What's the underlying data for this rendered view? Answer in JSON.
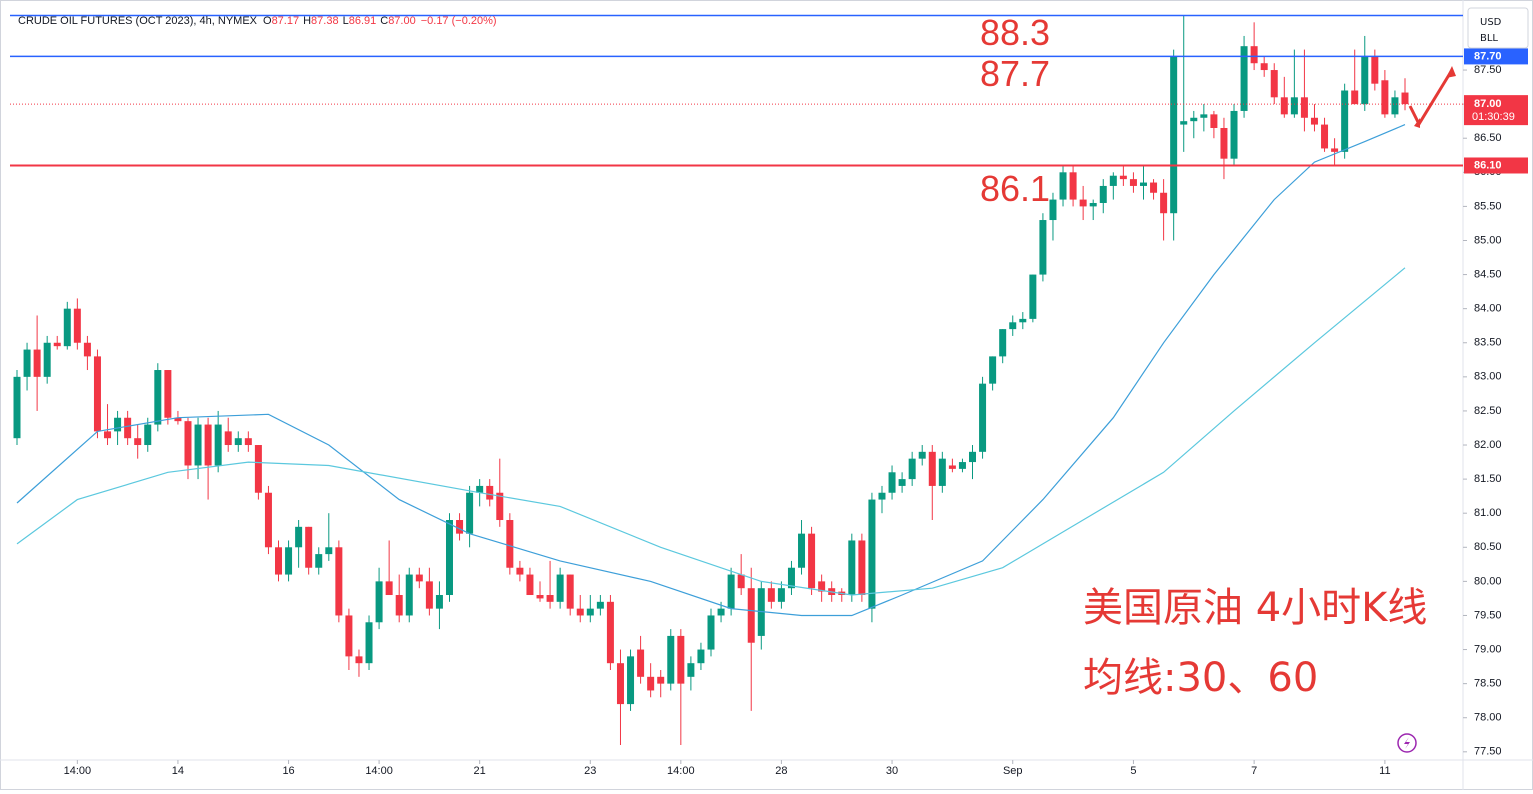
{
  "header": {
    "title": "CRUDE OIL FUTURES (OCT 2023), 4h, NYMEX",
    "fields": [
      {
        "key": "O",
        "value": "87.17"
      },
      {
        "key": "H",
        "value": "87.38"
      },
      {
        "key": "L",
        "value": "86.91"
      },
      {
        "key": "C",
        "value": "87.00"
      }
    ],
    "change": "−0.17 (−0.20%)",
    "currency": "USD",
    "unit": "BLL"
  },
  "chart_data": {
    "type": "candlestick",
    "up_color": "#089981",
    "down_color": "#f23645",
    "ohlc": [
      [
        82.1,
        83.1,
        82.0,
        83.0
      ],
      [
        83.0,
        83.5,
        82.8,
        83.4
      ],
      [
        83.4,
        83.9,
        82.5,
        83.0
      ],
      [
        83.0,
        83.6,
        82.9,
        83.5
      ],
      [
        83.5,
        83.6,
        83.4,
        83.45
      ],
      [
        83.45,
        84.1,
        83.4,
        84.0
      ],
      [
        84.0,
        84.15,
        83.4,
        83.5
      ],
      [
        83.5,
        83.6,
        83.1,
        83.3
      ],
      [
        83.3,
        83.4,
        82.1,
        82.2
      ],
      [
        82.2,
        82.6,
        82.0,
        82.1
      ],
      [
        82.2,
        82.5,
        82.0,
        82.4
      ],
      [
        82.4,
        82.5,
        82.0,
        82.1
      ],
      [
        82.1,
        82.3,
        81.8,
        82.0
      ],
      [
        82.0,
        82.4,
        81.9,
        82.3
      ],
      [
        82.3,
        83.2,
        82.2,
        83.1
      ],
      [
        83.1,
        83.1,
        82.3,
        82.4
      ],
      [
        82.4,
        82.5,
        82.3,
        82.35
      ],
      [
        82.35,
        82.4,
        81.5,
        81.7
      ],
      [
        81.7,
        82.4,
        81.5,
        82.3
      ],
      [
        82.3,
        82.4,
        81.2,
        81.7
      ],
      [
        81.7,
        82.5,
        81.6,
        82.3
      ],
      [
        82.2,
        82.4,
        81.9,
        82.0
      ],
      [
        82.0,
        82.2,
        81.9,
        82.1
      ],
      [
        82.1,
        82.2,
        81.9,
        82.0
      ],
      [
        82.0,
        82.0,
        81.2,
        81.3
      ],
      [
        81.3,
        81.4,
        80.4,
        80.5
      ],
      [
        80.5,
        80.6,
        80.0,
        80.1
      ],
      [
        80.1,
        80.6,
        80.0,
        80.5
      ],
      [
        80.5,
        80.9,
        80.2,
        80.8
      ],
      [
        80.8,
        80.8,
        80.1,
        80.2
      ],
      [
        80.2,
        80.5,
        80.1,
        80.4
      ],
      [
        80.4,
        81.0,
        80.3,
        80.5
      ],
      [
        80.5,
        80.6,
        79.4,
        79.5
      ],
      [
        79.5,
        79.6,
        78.7,
        78.9
      ],
      [
        78.9,
        79.0,
        78.6,
        78.8
      ],
      [
        78.8,
        79.5,
        78.7,
        79.4
      ],
      [
        79.4,
        80.2,
        79.3,
        80.0
      ],
      [
        80.0,
        80.6,
        79.8,
        79.8
      ],
      [
        79.8,
        80.1,
        79.4,
        79.5
      ],
      [
        79.5,
        80.2,
        79.4,
        80.1
      ],
      [
        80.1,
        80.2,
        79.9,
        80.0
      ],
      [
        80.0,
        80.2,
        79.5,
        79.6
      ],
      [
        79.6,
        80.0,
        79.3,
        79.8
      ],
      [
        79.8,
        81.0,
        79.7,
        80.9
      ],
      [
        80.9,
        81.0,
        80.6,
        80.7
      ],
      [
        80.7,
        81.4,
        80.5,
        81.3
      ],
      [
        81.3,
        81.5,
        81.1,
        81.4
      ],
      [
        81.4,
        81.5,
        81.1,
        81.2
      ],
      [
        81.3,
        81.8,
        80.8,
        80.9
      ],
      [
        80.9,
        81.0,
        80.1,
        80.2
      ],
      [
        80.2,
        80.3,
        80.0,
        80.1
      ],
      [
        80.1,
        80.2,
        79.8,
        79.8
      ],
      [
        79.8,
        80.0,
        79.7,
        79.75
      ],
      [
        79.8,
        80.3,
        79.6,
        79.7
      ],
      [
        79.7,
        80.2,
        79.6,
        80.1
      ],
      [
        80.1,
        80.1,
        79.5,
        79.6
      ],
      [
        79.6,
        79.8,
        79.4,
        79.5
      ],
      [
        79.5,
        79.8,
        79.4,
        79.6
      ],
      [
        79.6,
        79.8,
        79.5,
        79.7
      ],
      [
        79.7,
        79.8,
        78.7,
        78.8
      ],
      [
        78.8,
        79.0,
        77.6,
        78.2
      ],
      [
        78.2,
        79.0,
        78.1,
        78.9
      ],
      [
        79.0,
        79.2,
        78.5,
        78.6
      ],
      [
        78.6,
        78.8,
        78.3,
        78.4
      ],
      [
        78.6,
        78.7,
        78.3,
        78.5
      ],
      [
        78.5,
        79.3,
        78.4,
        79.2
      ],
      [
        79.2,
        79.3,
        77.6,
        78.5
      ],
      [
        78.6,
        78.9,
        78.4,
        78.8
      ],
      [
        78.8,
        79.1,
        78.7,
        79.0
      ],
      [
        79.0,
        79.6,
        78.9,
        79.5
      ],
      [
        79.5,
        79.7,
        79.4,
        79.6
      ],
      [
        79.6,
        80.2,
        79.5,
        80.1
      ],
      [
        80.1,
        80.4,
        79.8,
        79.9
      ],
      [
        79.9,
        80.2,
        78.1,
        79.1
      ],
      [
        79.2,
        80.0,
        79.0,
        79.9
      ],
      [
        79.9,
        80.0,
        79.6,
        79.7
      ],
      [
        79.7,
        80.0,
        79.6,
        79.9
      ],
      [
        79.9,
        80.3,
        79.8,
        80.2
      ],
      [
        80.2,
        80.9,
        80.1,
        80.7
      ],
      [
        80.7,
        80.8,
        79.8,
        79.9
      ],
      [
        80.0,
        80.1,
        79.7,
        79.85
      ],
      [
        79.9,
        80.0,
        79.7,
        79.8
      ],
      [
        79.85,
        79.9,
        79.7,
        79.8
      ],
      [
        79.8,
        80.7,
        79.7,
        80.6
      ],
      [
        80.6,
        80.7,
        79.7,
        79.8
      ],
      [
        79.6,
        81.3,
        79.4,
        81.2
      ],
      [
        81.2,
        81.4,
        81.0,
        81.3
      ],
      [
        81.3,
        81.7,
        81.2,
        81.6
      ],
      [
        81.4,
        81.6,
        81.3,
        81.5
      ],
      [
        81.5,
        81.9,
        81.4,
        81.8
      ],
      [
        81.8,
        82.0,
        81.7,
        81.9
      ],
      [
        81.9,
        82.0,
        80.9,
        81.4
      ],
      [
        81.4,
        81.9,
        81.3,
        81.8
      ],
      [
        81.7,
        81.8,
        81.6,
        81.65
      ],
      [
        81.65,
        81.8,
        81.6,
        81.75
      ],
      [
        81.75,
        82.0,
        81.5,
        81.9
      ],
      [
        81.9,
        83.0,
        81.8,
        82.9
      ],
      [
        82.9,
        83.3,
        82.8,
        83.3
      ],
      [
        83.3,
        83.7,
        83.2,
        83.7
      ],
      [
        83.7,
        83.9,
        83.6,
        83.8
      ],
      [
        83.8,
        83.95,
        83.7,
        83.85
      ],
      [
        83.85,
        84.5,
        83.8,
        84.5
      ],
      [
        84.5,
        85.4,
        84.4,
        85.3
      ],
      [
        85.3,
        85.7,
        85.0,
        85.6
      ],
      [
        85.6,
        86.1,
        85.5,
        86.0
      ],
      [
        86.0,
        86.1,
        85.5,
        85.6
      ],
      [
        85.6,
        85.8,
        85.3,
        85.5
      ],
      [
        85.5,
        85.6,
        85.3,
        85.55
      ],
      [
        85.55,
        85.9,
        85.4,
        85.8
      ],
      [
        85.8,
        86.0,
        85.6,
        85.95
      ],
      [
        85.95,
        86.1,
        85.8,
        85.9
      ],
      [
        85.9,
        86.0,
        85.7,
        85.8
      ],
      [
        85.8,
        86.1,
        85.6,
        85.85
      ],
      [
        85.85,
        85.9,
        85.6,
        85.7
      ],
      [
        85.7,
        85.9,
        85.0,
        85.4
      ],
      [
        85.4,
        87.8,
        85.0,
        87.7
      ],
      [
        86.7,
        88.3,
        86.3,
        86.75
      ],
      [
        86.75,
        86.9,
        86.5,
        86.8
      ],
      [
        86.8,
        87.0,
        86.6,
        86.85
      ],
      [
        86.85,
        86.9,
        86.5,
        86.65
      ],
      [
        86.65,
        86.8,
        85.9,
        86.2
      ],
      [
        86.2,
        87.0,
        86.1,
        86.9
      ],
      [
        86.9,
        88.0,
        86.8,
        87.85
      ],
      [
        87.85,
        88.2,
        87.5,
        87.6
      ],
      [
        87.6,
        87.7,
        87.4,
        87.5
      ],
      [
        87.5,
        87.6,
        87.0,
        87.1
      ],
      [
        87.1,
        87.4,
        86.8,
        86.85
      ],
      [
        86.85,
        87.8,
        86.8,
        87.1
      ],
      [
        87.1,
        87.8,
        86.6,
        86.8
      ],
      [
        86.8,
        87.0,
        86.6,
        86.7
      ],
      [
        86.7,
        86.8,
        86.3,
        86.35
      ],
      [
        86.35,
        86.5,
        86.1,
        86.3
      ],
      [
        86.3,
        87.3,
        86.2,
        87.2
      ],
      [
        87.2,
        87.8,
        87.0,
        87.0
      ],
      [
        87.0,
        88.0,
        86.9,
        87.7
      ],
      [
        87.7,
        87.8,
        87.2,
        87.3
      ],
      [
        87.35,
        87.5,
        86.8,
        86.85
      ],
      [
        86.85,
        87.2,
        86.8,
        87.1
      ],
      [
        87.17,
        87.38,
        86.91,
        87.0
      ]
    ],
    "series": [
      {
        "color": "#3d9fd9",
        "x": [
          0,
          8,
          16,
          25,
          31,
          38,
          45,
          54,
          63,
          71,
          78,
          83,
          88,
          96,
          102,
          109,
          114,
          119,
          125,
          129,
          134,
          138
        ],
        "values": [
          81.15,
          82.2,
          82.4,
          82.45,
          82.0,
          81.2,
          80.7,
          80.3,
          80.0,
          79.6,
          79.5,
          79.5,
          79.8,
          80.3,
          81.2,
          82.4,
          83.5,
          84.5,
          85.6,
          86.15,
          86.45,
          86.7
        ]
      },
      {
        "color": "#5bc8de",
        "x": [
          0,
          6,
          15,
          23,
          31,
          46,
          54,
          64,
          74,
          83,
          91,
          98,
          106,
          114,
          121,
          129,
          138
        ],
        "values": [
          80.55,
          81.2,
          81.6,
          81.75,
          81.7,
          81.3,
          81.1,
          80.5,
          80.0,
          79.8,
          79.9,
          80.2,
          80.9,
          81.6,
          82.5,
          83.5,
          84.6
        ]
      }
    ],
    "ylim": [
      77.38,
      88.41
    ],
    "yticks": [
      {
        "value": 77.5,
        "label": "77.50"
      },
      {
        "value": 78,
        "label": "78.00"
      },
      {
        "value": 78.5,
        "label": "78.50"
      },
      {
        "value": 79,
        "label": "79.00"
      },
      {
        "value": 79.5,
        "label": "79.50"
      },
      {
        "value": 80,
        "label": "80.00"
      },
      {
        "value": 80.5,
        "label": "80.50"
      },
      {
        "value": 81,
        "label": "81.00"
      },
      {
        "value": 81.5,
        "label": "81.50"
      },
      {
        "value": 82,
        "label": "82.00"
      },
      {
        "value": 82.5,
        "label": "82.50"
      },
      {
        "value": 83,
        "label": "83.00"
      },
      {
        "value": 83.5,
        "label": "83.50"
      },
      {
        "value": 84,
        "label": "84.00"
      },
      {
        "value": 84.5,
        "label": "84.50"
      },
      {
        "value": 85,
        "label": "85.00"
      },
      {
        "value": 85.5,
        "label": "85.50"
      },
      {
        "value": 86,
        "label": "86.00"
      },
      {
        "value": 86.5,
        "label": "86.50"
      },
      {
        "value": 87,
        "label": "87.00"
      },
      {
        "value": 87.5,
        "label": "87.50"
      }
    ],
    "xticks": [
      {
        "value": 6,
        "label": "14:00"
      },
      {
        "value": 16,
        "label": "14"
      },
      {
        "value": 27,
        "label": "16"
      },
      {
        "value": 36,
        "label": "14:00"
      },
      {
        "value": 46,
        "label": "21"
      },
      {
        "value": 57,
        "label": "23"
      },
      {
        "value": 66,
        "label": "14:00"
      },
      {
        "value": 76,
        "label": "28"
      },
      {
        "value": 87,
        "label": "30"
      },
      {
        "value": 99,
        "label": "Sep"
      },
      {
        "value": 111,
        "label": "5"
      },
      {
        "value": 123,
        "label": "7"
      },
      {
        "value": 136,
        "label": "11"
      }
    ],
    "levels": [
      {
        "value": 88.3,
        "color": "#2962ff"
      },
      {
        "value": 87.7,
        "color": "#2962ff",
        "axis_label": "87.70"
      },
      {
        "value": 86.1,
        "color": "#f23645",
        "axis_label": "86.10"
      }
    ],
    "last_price": {
      "value": 87.0,
      "label": "87.00",
      "countdown": "01:30:39",
      "color": "#f23645"
    },
    "annotations": [
      "美国原油 4小时K线",
      "均线:30、60"
    ]
  }
}
